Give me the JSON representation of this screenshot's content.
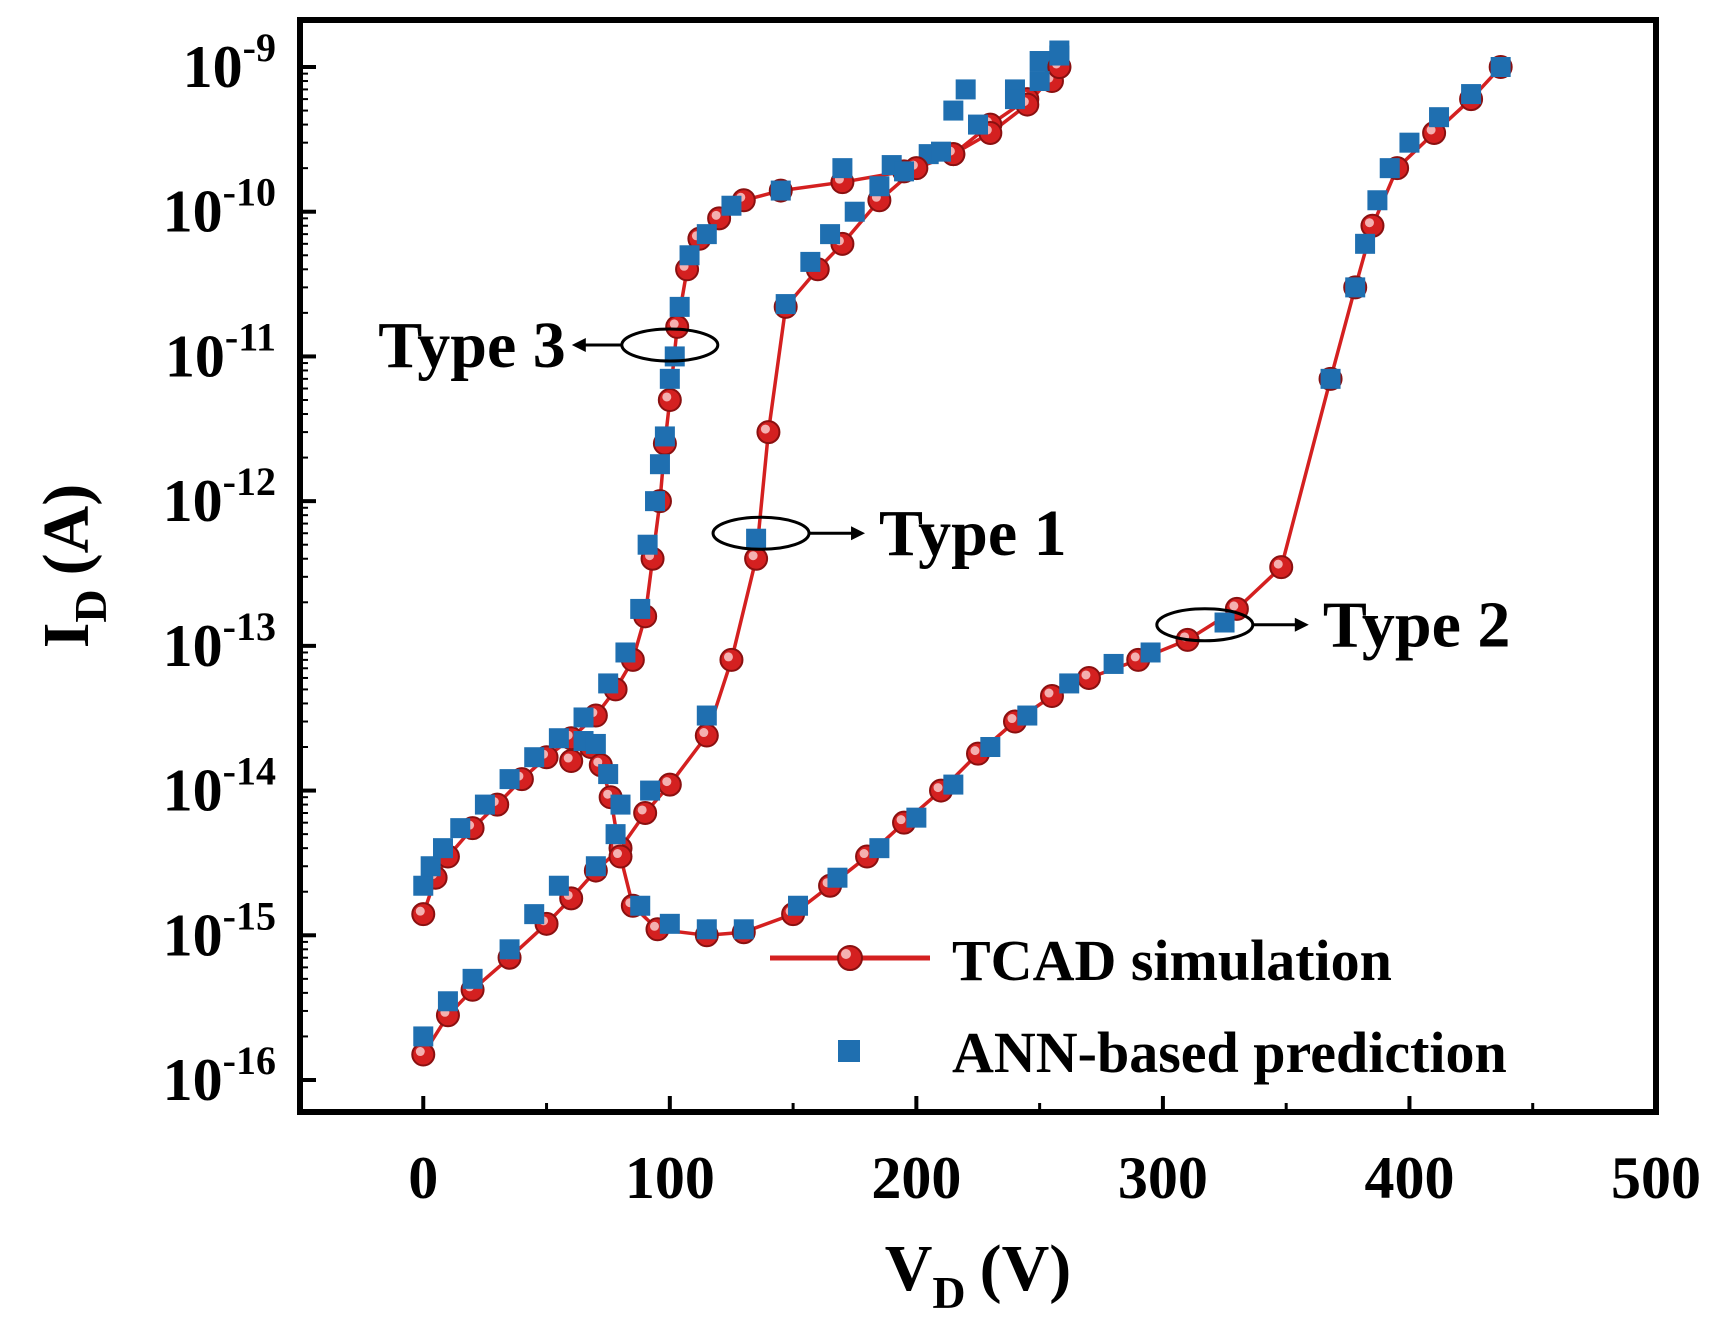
{
  "chart_data": {
    "type": "scatter",
    "x_axis": {
      "label_main": "V",
      "label_sub": "D",
      "label_unit": "(V)",
      "min": -50,
      "max": 500,
      "ticks": [
        0,
        100,
        200,
        300,
        400,
        500
      ],
      "tick_labels": [
        "0",
        "100",
        "200",
        "300",
        "400",
        "500"
      ]
    },
    "y_axis": {
      "label_main": "I",
      "label_sub": "D",
      "label_unit": "(A)",
      "scale": "log",
      "min": 1e-16,
      "max": 2e-09,
      "ticks": [
        1e-16,
        1e-15,
        1e-14,
        1e-13,
        1e-12,
        1e-11,
        1e-10,
        1e-09
      ],
      "tick_labels": [
        {
          "base": "10",
          "exp": "-16"
        },
        {
          "base": "10",
          "exp": "-15"
        },
        {
          "base": "10",
          "exp": "-14"
        },
        {
          "base": "10",
          "exp": "-13"
        },
        {
          "base": "10",
          "exp": "-12"
        },
        {
          "base": "10",
          "exp": "-11"
        },
        {
          "base": "10",
          "exp": "-10"
        },
        {
          "base": "10",
          "exp": "-9"
        }
      ]
    },
    "legend": {
      "placement": "bottom-right",
      "entries": [
        {
          "label": "TCAD simulation",
          "style": "line-circle",
          "color": "#d42020"
        },
        {
          "label": "ANN-based prediction",
          "style": "square",
          "color": "#1f6fb0"
        }
      ]
    },
    "annotations": [
      {
        "text": "Type 3",
        "target_x": 100,
        "target_y": 1.2e-11,
        "direction": "left"
      },
      {
        "text": "Type 1",
        "target_x": 137,
        "target_y": 6e-13,
        "direction": "right"
      },
      {
        "text": "Type 2",
        "target_x": 317,
        "target_y": 1.4e-13,
        "direction": "right"
      }
    ],
    "series": [
      {
        "name": "TCAD simulation",
        "curve": "Type 3",
        "color": "#d42020",
        "marker": "circle",
        "points": [
          [
            0,
            1.4e-15
          ],
          [
            5,
            2.5e-15
          ],
          [
            10,
            3.5e-15
          ],
          [
            20,
            5.5e-15
          ],
          [
            30,
            8e-15
          ],
          [
            40,
            1.2e-14
          ],
          [
            50,
            1.7e-14
          ],
          [
            60,
            2.3e-14
          ],
          [
            70,
            3.3e-14
          ],
          [
            78,
            5e-14
          ],
          [
            85,
            8e-14
          ],
          [
            90,
            1.6e-13
          ],
          [
            93,
            4e-13
          ],
          [
            96,
            1e-12
          ],
          [
            98,
            2.5e-12
          ],
          [
            100,
            5e-12
          ],
          [
            103,
            1.6e-11
          ],
          [
            107,
            4e-11
          ],
          [
            112,
            6.5e-11
          ],
          [
            120,
            9e-11
          ],
          [
            130,
            1.2e-10
          ],
          [
            145,
            1.4e-10
          ],
          [
            170,
            1.6e-10
          ],
          [
            195,
            1.9e-10
          ],
          [
            215,
            2.5e-10
          ],
          [
            230,
            4e-10
          ],
          [
            245,
            6e-10
          ],
          [
            255,
            8e-10
          ],
          [
            258,
            1e-09
          ]
        ]
      },
      {
        "name": "ANN-based prediction",
        "curve": "Type 3",
        "color": "#1f6fb0",
        "marker": "square",
        "points": [
          [
            0,
            2.2e-15
          ],
          [
            3,
            3e-15
          ],
          [
            8,
            4e-15
          ],
          [
            15,
            5.5e-15
          ],
          [
            25,
            8e-15
          ],
          [
            35,
            1.2e-14
          ],
          [
            45,
            1.7e-14
          ],
          [
            55,
            2.3e-14
          ],
          [
            65,
            3.2e-14
          ],
          [
            75,
            5.5e-14
          ],
          [
            82,
            9e-14
          ],
          [
            88,
            1.8e-13
          ],
          [
            91,
            5e-13
          ],
          [
            94,
            1e-12
          ],
          [
            96,
            1.8e-12
          ],
          [
            98,
            2.8e-12
          ],
          [
            100,
            7e-12
          ],
          [
            102,
            1e-11
          ],
          [
            104,
            2.2e-11
          ],
          [
            108,
            5e-11
          ],
          [
            115,
            7e-11
          ],
          [
            125,
            1.1e-10
          ],
          [
            145,
            1.4e-10
          ],
          [
            170,
            2e-10
          ],
          [
            190,
            2.1e-10
          ],
          [
            205,
            2.5e-10
          ],
          [
            215,
            5e-10
          ],
          [
            220,
            7e-10
          ],
          [
            240,
            7e-10
          ],
          [
            250,
            1.1e-09
          ],
          [
            258,
            1.3e-09
          ]
        ]
      },
      {
        "name": "TCAD simulation",
        "curve": "Type 1",
        "color": "#d42020",
        "marker": "circle",
        "points": [
          [
            0,
            1.5e-16
          ],
          [
            10,
            2.8e-16
          ],
          [
            20,
            4.2e-16
          ],
          [
            35,
            7e-16
          ],
          [
            50,
            1.2e-15
          ],
          [
            60,
            1.8e-15
          ],
          [
            70,
            2.8e-15
          ],
          [
            80,
            4e-15
          ],
          [
            90,
            7e-15
          ],
          [
            100,
            1.1e-14
          ],
          [
            115,
            2.4e-14
          ],
          [
            125,
            8e-14
          ],
          [
            135,
            4e-13
          ],
          [
            140,
            3e-12
          ],
          [
            147,
            2.2e-11
          ],
          [
            160,
            4e-11
          ],
          [
            170,
            6e-11
          ],
          [
            185,
            1.2e-10
          ],
          [
            200,
            2e-10
          ],
          [
            215,
            2.5e-10
          ],
          [
            230,
            3.5e-10
          ],
          [
            245,
            5.5e-10
          ],
          [
            258,
            1e-09
          ]
        ]
      },
      {
        "name": "ANN-based prediction",
        "curve": "Type 1",
        "color": "#1f6fb0",
        "marker": "square",
        "points": [
          [
            0,
            2e-16
          ],
          [
            10,
            3.5e-16
          ],
          [
            20,
            5e-16
          ],
          [
            35,
            8e-16
          ],
          [
            45,
            1.4e-15
          ],
          [
            55,
            2.2e-15
          ],
          [
            70,
            3e-15
          ],
          [
            78,
            5e-15
          ],
          [
            92,
            1e-14
          ],
          [
            115,
            3.3e-14
          ],
          [
            135,
            5.5e-13
          ],
          [
            147,
            2.3e-11
          ],
          [
            157,
            4.5e-11
          ],
          [
            165,
            7e-11
          ],
          [
            175,
            1e-10
          ],
          [
            185,
            1.5e-10
          ],
          [
            195,
            1.9e-10
          ],
          [
            210,
            2.6e-10
          ],
          [
            225,
            4e-10
          ],
          [
            240,
            6e-10
          ],
          [
            250,
            8e-10
          ],
          [
            258,
            1.2e-09
          ]
        ]
      },
      {
        "name": "TCAD simulation",
        "curve": "Type 2",
        "color": "#d42020",
        "marker": "circle",
        "points": [
          [
            60,
            1.6e-14
          ],
          [
            68,
            2e-14
          ],
          [
            72,
            1.5e-14
          ],
          [
            76,
            9e-15
          ],
          [
            80,
            3.5e-15
          ],
          [
            85,
            1.6e-15
          ],
          [
            95,
            1.1e-15
          ],
          [
            115,
            1e-15
          ],
          [
            130,
            1.05e-15
          ],
          [
            150,
            1.4e-15
          ],
          [
            165,
            2.2e-15
          ],
          [
            180,
            3.5e-15
          ],
          [
            195,
            6e-15
          ],
          [
            210,
            1e-14
          ],
          [
            225,
            1.8e-14
          ],
          [
            240,
            3e-14
          ],
          [
            255,
            4.5e-14
          ],
          [
            270,
            6e-14
          ],
          [
            290,
            8e-14
          ],
          [
            310,
            1.1e-13
          ],
          [
            330,
            1.8e-13
          ],
          [
            348,
            3.5e-13
          ],
          [
            368,
            7e-12
          ],
          [
            378,
            3e-11
          ],
          [
            385,
            8e-11
          ],
          [
            395,
            2e-10
          ],
          [
            410,
            3.5e-10
          ],
          [
            425,
            6e-10
          ],
          [
            437,
            1e-09
          ]
        ]
      },
      {
        "name": "ANN-based prediction",
        "curve": "Type 2",
        "color": "#1f6fb0",
        "marker": "square",
        "points": [
          [
            65,
            2.2e-14
          ],
          [
            70,
            2.1e-14
          ],
          [
            75,
            1.3e-14
          ],
          [
            80,
            8e-15
          ],
          [
            88,
            1.6e-15
          ],
          [
            100,
            1.2e-15
          ],
          [
            115,
            1.1e-15
          ],
          [
            130,
            1.1e-15
          ],
          [
            152,
            1.6e-15
          ],
          [
            168,
            2.5e-15
          ],
          [
            185,
            4e-15
          ],
          [
            200,
            6.5e-15
          ],
          [
            215,
            1.1e-14
          ],
          [
            230,
            2e-14
          ],
          [
            245,
            3.3e-14
          ],
          [
            262,
            5.5e-14
          ],
          [
            280,
            7.5e-14
          ],
          [
            295,
            9e-14
          ],
          [
            325,
            1.45e-13
          ],
          [
            368,
            7e-12
          ],
          [
            378,
            3e-11
          ],
          [
            382,
            6e-11
          ],
          [
            387,
            1.2e-10
          ],
          [
            392,
            2e-10
          ],
          [
            400,
            3e-10
          ],
          [
            412,
            4.5e-10
          ],
          [
            425,
            6.5e-10
          ],
          [
            437,
            1e-09
          ]
        ]
      }
    ]
  }
}
